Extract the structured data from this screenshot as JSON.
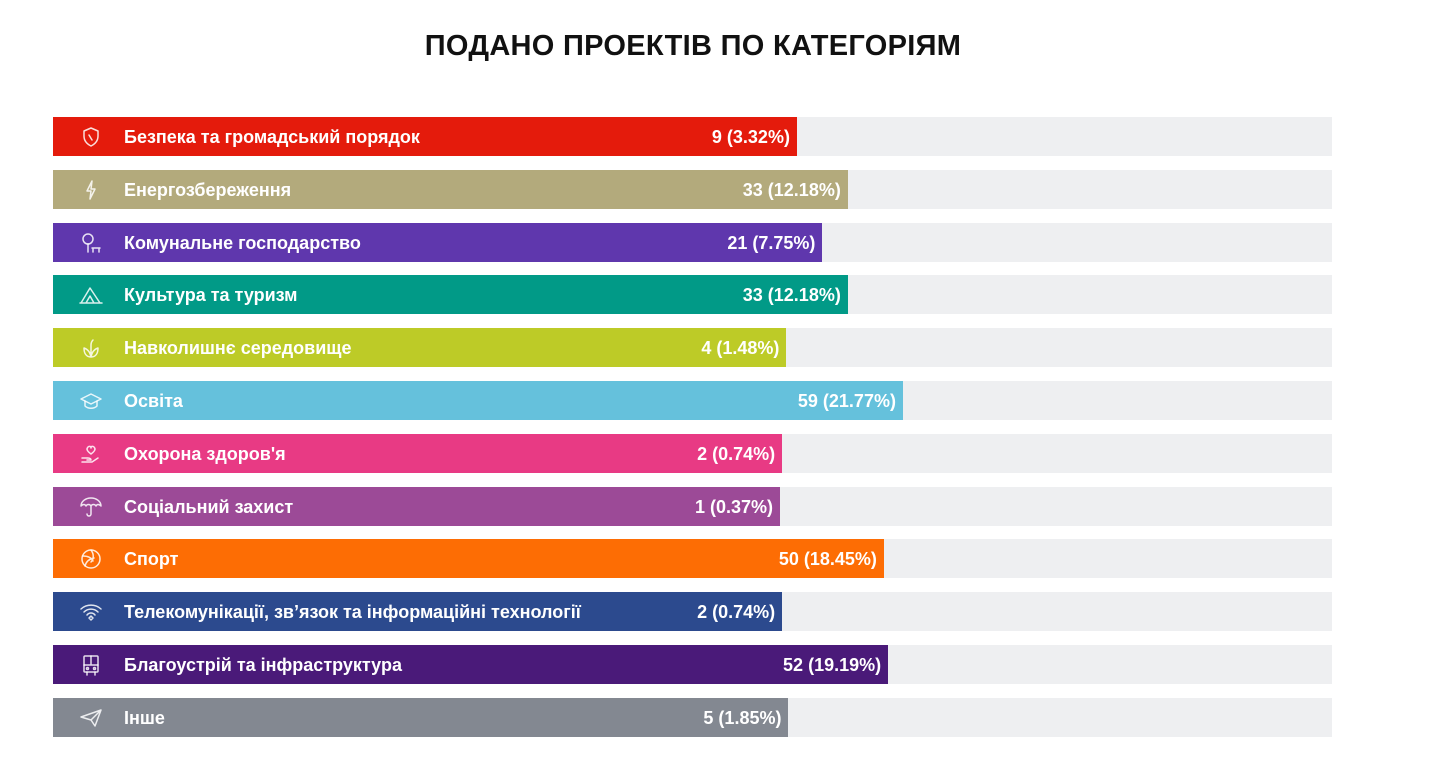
{
  "chart_data": {
    "type": "bar",
    "orientation": "horizontal",
    "title": "ПОДАНО ПРОЕКТІВ ПО КАТЕГОРІЯМ",
    "grid": false,
    "bars": [
      {
        "category": "Безпека та громадський порядок",
        "value": 9,
        "label": "9 (3.32%)",
        "color": "#e41b0c",
        "icon": "shield-icon"
      },
      {
        "category": "Енергозбереження",
        "value": 33,
        "label": "33 (12.18%)",
        "color": "#b3aa7c",
        "icon": "lightning-icon"
      },
      {
        "category": "Комунальне господарство",
        "value": 21,
        "label": "21 (7.75%)",
        "color": "#5f37ad",
        "icon": "tree-bench-icon"
      },
      {
        "category": "Культура та туризм",
        "value": 33,
        "label": "33 (12.18%)",
        "color": "#019a87",
        "icon": "tent-icon"
      },
      {
        "category": "Навколишнє середовище",
        "value": 4,
        "label": "4 (1.48%)",
        "color": "#bdcb27",
        "icon": "leaf-icon"
      },
      {
        "category": "Освіта",
        "value": 59,
        "label": "59 (21.77%)",
        "color": "#65c1dc",
        "icon": "graduation-cap-icon"
      },
      {
        "category": "Охорона здоров'я",
        "value": 2,
        "label": "2 (0.74%)",
        "color": "#e83a84",
        "icon": "heart-hand-icon"
      },
      {
        "category": "Соціальний захист",
        "value": 1,
        "label": "1 (0.37%)",
        "color": "#9c4a97",
        "icon": "umbrella-icon"
      },
      {
        "category": "Спорт",
        "value": 50,
        "label": "50 (18.45%)",
        "color": "#fd6d04",
        "icon": "volleyball-icon"
      },
      {
        "category": "Телекомунікації, зв’язок та інформаційні технології",
        "value": 2,
        "label": "2 (0.74%)",
        "color": "#2c4a8e",
        "icon": "wifi-icon"
      },
      {
        "category": "Благоустрій та інфраструктура",
        "value": 52,
        "label": "52 (19.19%)",
        "color": "#4a1a79",
        "icon": "bus-icon"
      },
      {
        "category": "Інше",
        "value": 5,
        "label": "5 (1.85%)",
        "color": "#838891",
        "icon": "paper-plane-icon"
      }
    ]
  }
}
